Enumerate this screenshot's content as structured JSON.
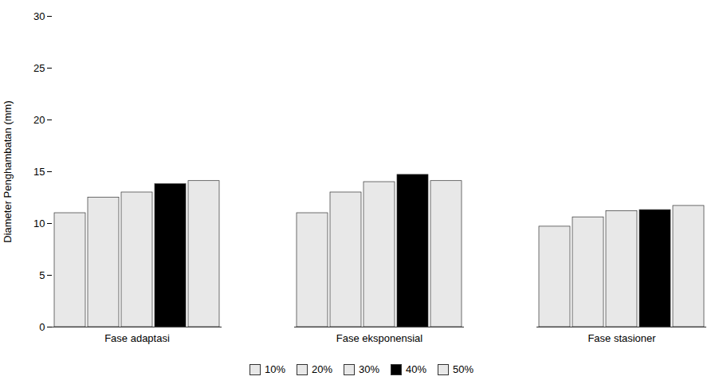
{
  "chart_data": {
    "type": "bar",
    "categories": [
      "Fase adaptasi",
      "Fase eksponensial",
      "Fase stasioner"
    ],
    "series": [
      {
        "name": "10%",
        "color": "#e8e8e8",
        "values": [
          11.0,
          11.0,
          9.7
        ]
      },
      {
        "name": "20%",
        "color": "#e8e8e8",
        "values": [
          12.5,
          13.0,
          10.6
        ]
      },
      {
        "name": "30%",
        "color": "#e8e8e8",
        "values": [
          13.0,
          14.0,
          11.2
        ]
      },
      {
        "name": "40%",
        "color": "#000000",
        "values": [
          13.8,
          14.7,
          11.3
        ]
      },
      {
        "name": "50%",
        "color": "#e8e8e8",
        "values": [
          14.1,
          14.1,
          11.7
        ]
      }
    ],
    "ylabel": "Diameter Penghambatan (mm)",
    "ylim": [
      0,
      30
    ],
    "yticks": [
      0,
      5,
      10,
      15,
      20,
      25,
      30
    ],
    "grid": false,
    "legend": "bottom"
  }
}
